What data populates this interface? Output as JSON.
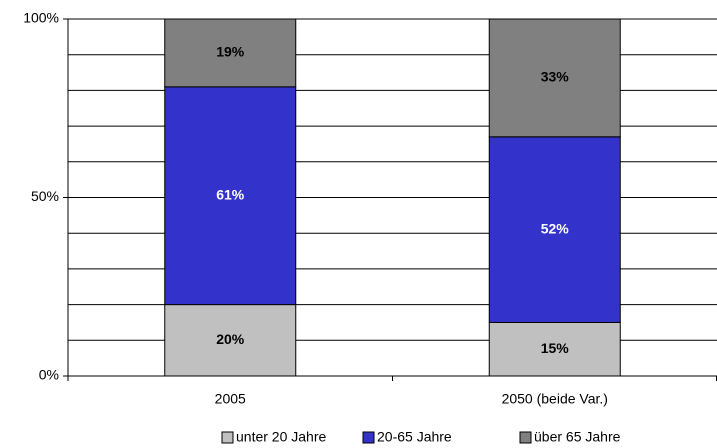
{
  "chart_data": {
    "type": "stacked_bar",
    "categories": [
      "2005",
      "2050 (beide Var.)"
    ],
    "series": [
      {
        "name": "unter 20 Jahre",
        "color": "#c0c0c0",
        "label_color": "#000000",
        "values": [
          20,
          15
        ],
        "value_labels": [
          "20%",
          "15%"
        ]
      },
      {
        "name": "20-65 Jahre",
        "color": "#3333cc",
        "label_color": "#ffffff",
        "values": [
          61,
          52
        ],
        "value_labels": [
          "61%",
          "52%"
        ]
      },
      {
        "name": "über 65 Jahre",
        "color": "#808080",
        "label_color": "#000000",
        "values": [
          19,
          33
        ],
        "value_labels": [
          "19%",
          "33%"
        ]
      }
    ],
    "ylim": [
      0,
      100
    ],
    "yticks": [
      {
        "value": 0,
        "label": "0%"
      },
      {
        "value": 50,
        "label": "50%"
      },
      {
        "value": 100,
        "label": "100%"
      }
    ],
    "ygrid": [
      10,
      20,
      30,
      40,
      50,
      60,
      70,
      80,
      90,
      100
    ],
    "legend": "bottom"
  }
}
